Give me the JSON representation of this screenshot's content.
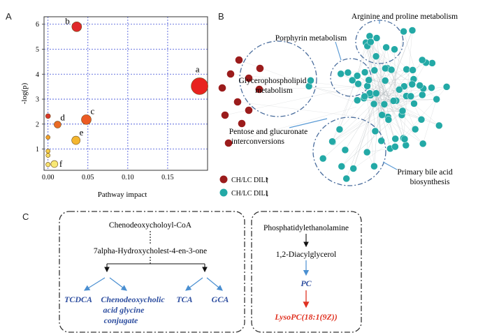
{
  "panels": {
    "a": "A",
    "b": "B",
    "c": "C"
  },
  "chart_data": {
    "type": "scatter",
    "title": "",
    "xlabel": "Pathway impact",
    "ylabel": "-log(p)",
    "xlim": [
      -0.005,
      0.2
    ],
    "ylim": [
      0.15,
      6.3
    ],
    "xticks": [
      0.0,
      0.05,
      0.1,
      0.15
    ],
    "xtick_labels": [
      "0.00",
      "0.05",
      "0.10",
      "0.15"
    ],
    "yticks": [
      1,
      2,
      3,
      4,
      5,
      6
    ],
    "ytick_labels": [
      "1",
      "2",
      "3",
      "4",
      "5",
      "6"
    ],
    "grid": true,
    "points": [
      {
        "label": "b",
        "x": 0.036,
        "y": 5.9,
        "size": 7,
        "color": "#e0282b"
      },
      {
        "label": "a",
        "x": 0.19,
        "y": 3.52,
        "size": 12,
        "color": "#e8231f"
      },
      {
        "label": "",
        "x": 0.0,
        "y": 2.32,
        "size": 3.5,
        "color": "#d9362b"
      },
      {
        "label": "d",
        "x": 0.012,
        "y": 1.98,
        "size": 5,
        "color": "#ea6b26"
      },
      {
        "label": "c",
        "x": 0.048,
        "y": 2.18,
        "size": 7,
        "color": "#ec5a25"
      },
      {
        "label": "",
        "x": 0.0,
        "y": 1.47,
        "size": 3,
        "color": "#f2a22b"
      },
      {
        "label": "e",
        "x": 0.035,
        "y": 1.35,
        "size": 6,
        "color": "#f4b62f"
      },
      {
        "label": "",
        "x": 0.0,
        "y": 0.92,
        "size": 3,
        "color": "#f5cd4a"
      },
      {
        "label": "",
        "x": 0.0,
        "y": 0.75,
        "size": 3,
        "color": "#f7dc63"
      },
      {
        "label": "",
        "x": 0.0,
        "y": 0.38,
        "size": 3.2,
        "color": "#f8e36f"
      },
      {
        "label": "f",
        "x": 0.008,
        "y": 0.4,
        "size": 5,
        "color": "#f8e875"
      }
    ]
  },
  "network": {
    "labels": {
      "arginine": "Arginine and proline metabolism",
      "porphyrin": "Porphyrin metabolism",
      "glycero_1": "Glycerophospholipid",
      "glycero_2": "metabolism",
      "pentose_1": "Pentose and glucuronate",
      "pentose_2": "interconversions",
      "bile_1": "Primary bile acid",
      "bile_2": "biosynthesis"
    },
    "legend": [
      {
        "label": "CH/LC DILI",
        "arrow": "↑",
        "color": "#9b1c1c"
      },
      {
        "label": "CH/LC DILI",
        "arrow": "↓",
        "color": "#23a9a6"
      }
    ],
    "up_color": "#9b1c1c",
    "down_color": "#23a9a6"
  },
  "pathway_c": {
    "left": {
      "top": "Chenodeoxycholoyl-CoA",
      "mid": "7alpha-Hydroxycholest-4-en-3-one",
      "products": [
        "TCDCA",
        "Chenodeoxycholic",
        "acid glycine",
        "conjugate",
        "TCA",
        "GCA"
      ]
    },
    "right": {
      "top": "Phosphatidylethanolamine",
      "mid": "1,2-Diacylglycerol",
      "pc": "PC",
      "lyso": "LysoPC(18:1(9Z))"
    }
  }
}
